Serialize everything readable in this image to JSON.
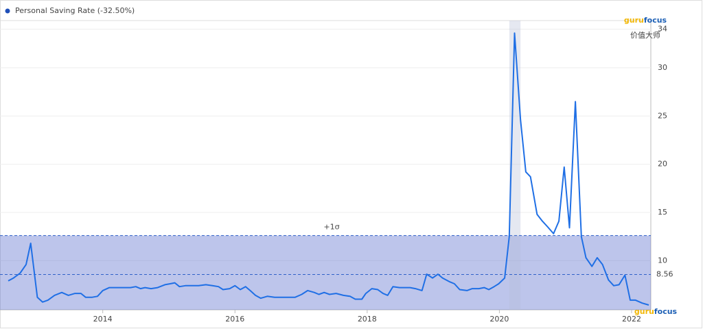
{
  "chart_data": {
    "type": "line",
    "legend": "Personal Saving Rate (-32.50%)",
    "x": [
      2012.57,
      2012.65,
      2012.75,
      2012.84,
      2012.91,
      2013.01,
      2013.09,
      2013.17,
      2013.27,
      2013.38,
      2013.48,
      2013.58,
      2013.67,
      2013.74,
      2013.84,
      2013.92,
      2014.0,
      2014.1,
      2014.21,
      2014.31,
      2014.42,
      2014.5,
      2014.57,
      2014.64,
      2014.73,
      2014.83,
      2014.94,
      2015.02,
      2015.09,
      2015.16,
      2015.25,
      2015.35,
      2015.45,
      2015.56,
      2015.66,
      2015.75,
      2015.82,
      2015.92,
      2016.0,
      2016.08,
      2016.16,
      2016.23,
      2016.31,
      2016.39,
      2016.49,
      2016.6,
      2016.7,
      2016.81,
      2016.91,
      2017.01,
      2017.1,
      2017.2,
      2017.27,
      2017.35,
      2017.43,
      2017.53,
      2017.64,
      2017.74,
      2017.82,
      2017.92,
      2017.98,
      2018.07,
      2018.16,
      2018.24,
      2018.31,
      2018.39,
      2018.49,
      2018.57,
      2018.65,
      2018.73,
      2018.83,
      2018.9,
      2018.99,
      2019.07,
      2019.14,
      2019.25,
      2019.32,
      2019.4,
      2019.51,
      2019.59,
      2019.69,
      2019.77,
      2019.84,
      2019.92,
      2019.99,
      2020.08,
      2020.15,
      2020.23,
      2020.32,
      2020.4,
      2020.47,
      2020.57,
      2020.65,
      2020.73,
      2020.82,
      2020.9,
      2020.98,
      2021.06,
      2021.15,
      2021.24,
      2021.31,
      2021.4,
      2021.48,
      2021.56,
      2021.65,
      2021.73,
      2021.81,
      2021.9,
      2021.98,
      2022.06,
      2022.16,
      2022.26
    ],
    "series": [
      {
        "name": "Personal Saving Rate",
        "color": "#1f6fe5",
        "values": [
          7.9,
          8.2,
          8.7,
          9.6,
          11.8,
          6.2,
          5.7,
          5.9,
          6.4,
          6.7,
          6.4,
          6.6,
          6.6,
          6.2,
          6.2,
          6.3,
          6.9,
          7.2,
          7.2,
          7.2,
          7.2,
          7.3,
          7.1,
          7.2,
          7.1,
          7.2,
          7.5,
          7.6,
          7.7,
          7.3,
          7.4,
          7.4,
          7.4,
          7.5,
          7.4,
          7.3,
          7.0,
          7.1,
          7.4,
          7.0,
          7.3,
          6.9,
          6.4,
          6.1,
          6.3,
          6.2,
          6.2,
          6.2,
          6.2,
          6.5,
          6.9,
          6.7,
          6.5,
          6.7,
          6.5,
          6.6,
          6.4,
          6.3,
          6.0,
          6.0,
          6.6,
          7.1,
          7.0,
          6.6,
          6.4,
          7.3,
          7.2,
          7.2,
          7.2,
          7.1,
          6.9,
          8.6,
          8.2,
          8.6,
          8.2,
          7.8,
          7.6,
          7.0,
          6.9,
          7.1,
          7.1,
          7.2,
          7.0,
          7.3,
          7.6,
          8.2,
          12.5,
          33.6,
          24.6,
          19.2,
          18.7,
          14.8,
          14.1,
          13.5,
          12.8,
          14.1,
          19.7,
          13.4,
          26.5,
          12.5,
          10.3,
          9.4,
          10.3,
          9.6,
          8.0,
          7.4,
          7.5,
          8.5,
          5.9,
          5.9,
          5.6,
          5.4
        ]
      }
    ],
    "xlim": [
      2012.57,
      2022.26
    ],
    "xticks": [
      2014,
      2016,
      2018,
      2020,
      2022
    ],
    "ylim": [
      4.9,
      34.9
    ],
    "yticks": [
      10,
      15,
      20,
      25,
      30,
      34
    ],
    "grid": true,
    "reference_lines": [
      {
        "value": 8.56,
        "label": "8.56"
      },
      {
        "value": 12.6,
        "label": "+1σ"
      }
    ],
    "highlight_x": [
      2020.15,
      2020.32
    ],
    "watermark": {
      "brand": [
        "guru",
        "focus"
      ],
      "tagline": "价值大师"
    }
  }
}
